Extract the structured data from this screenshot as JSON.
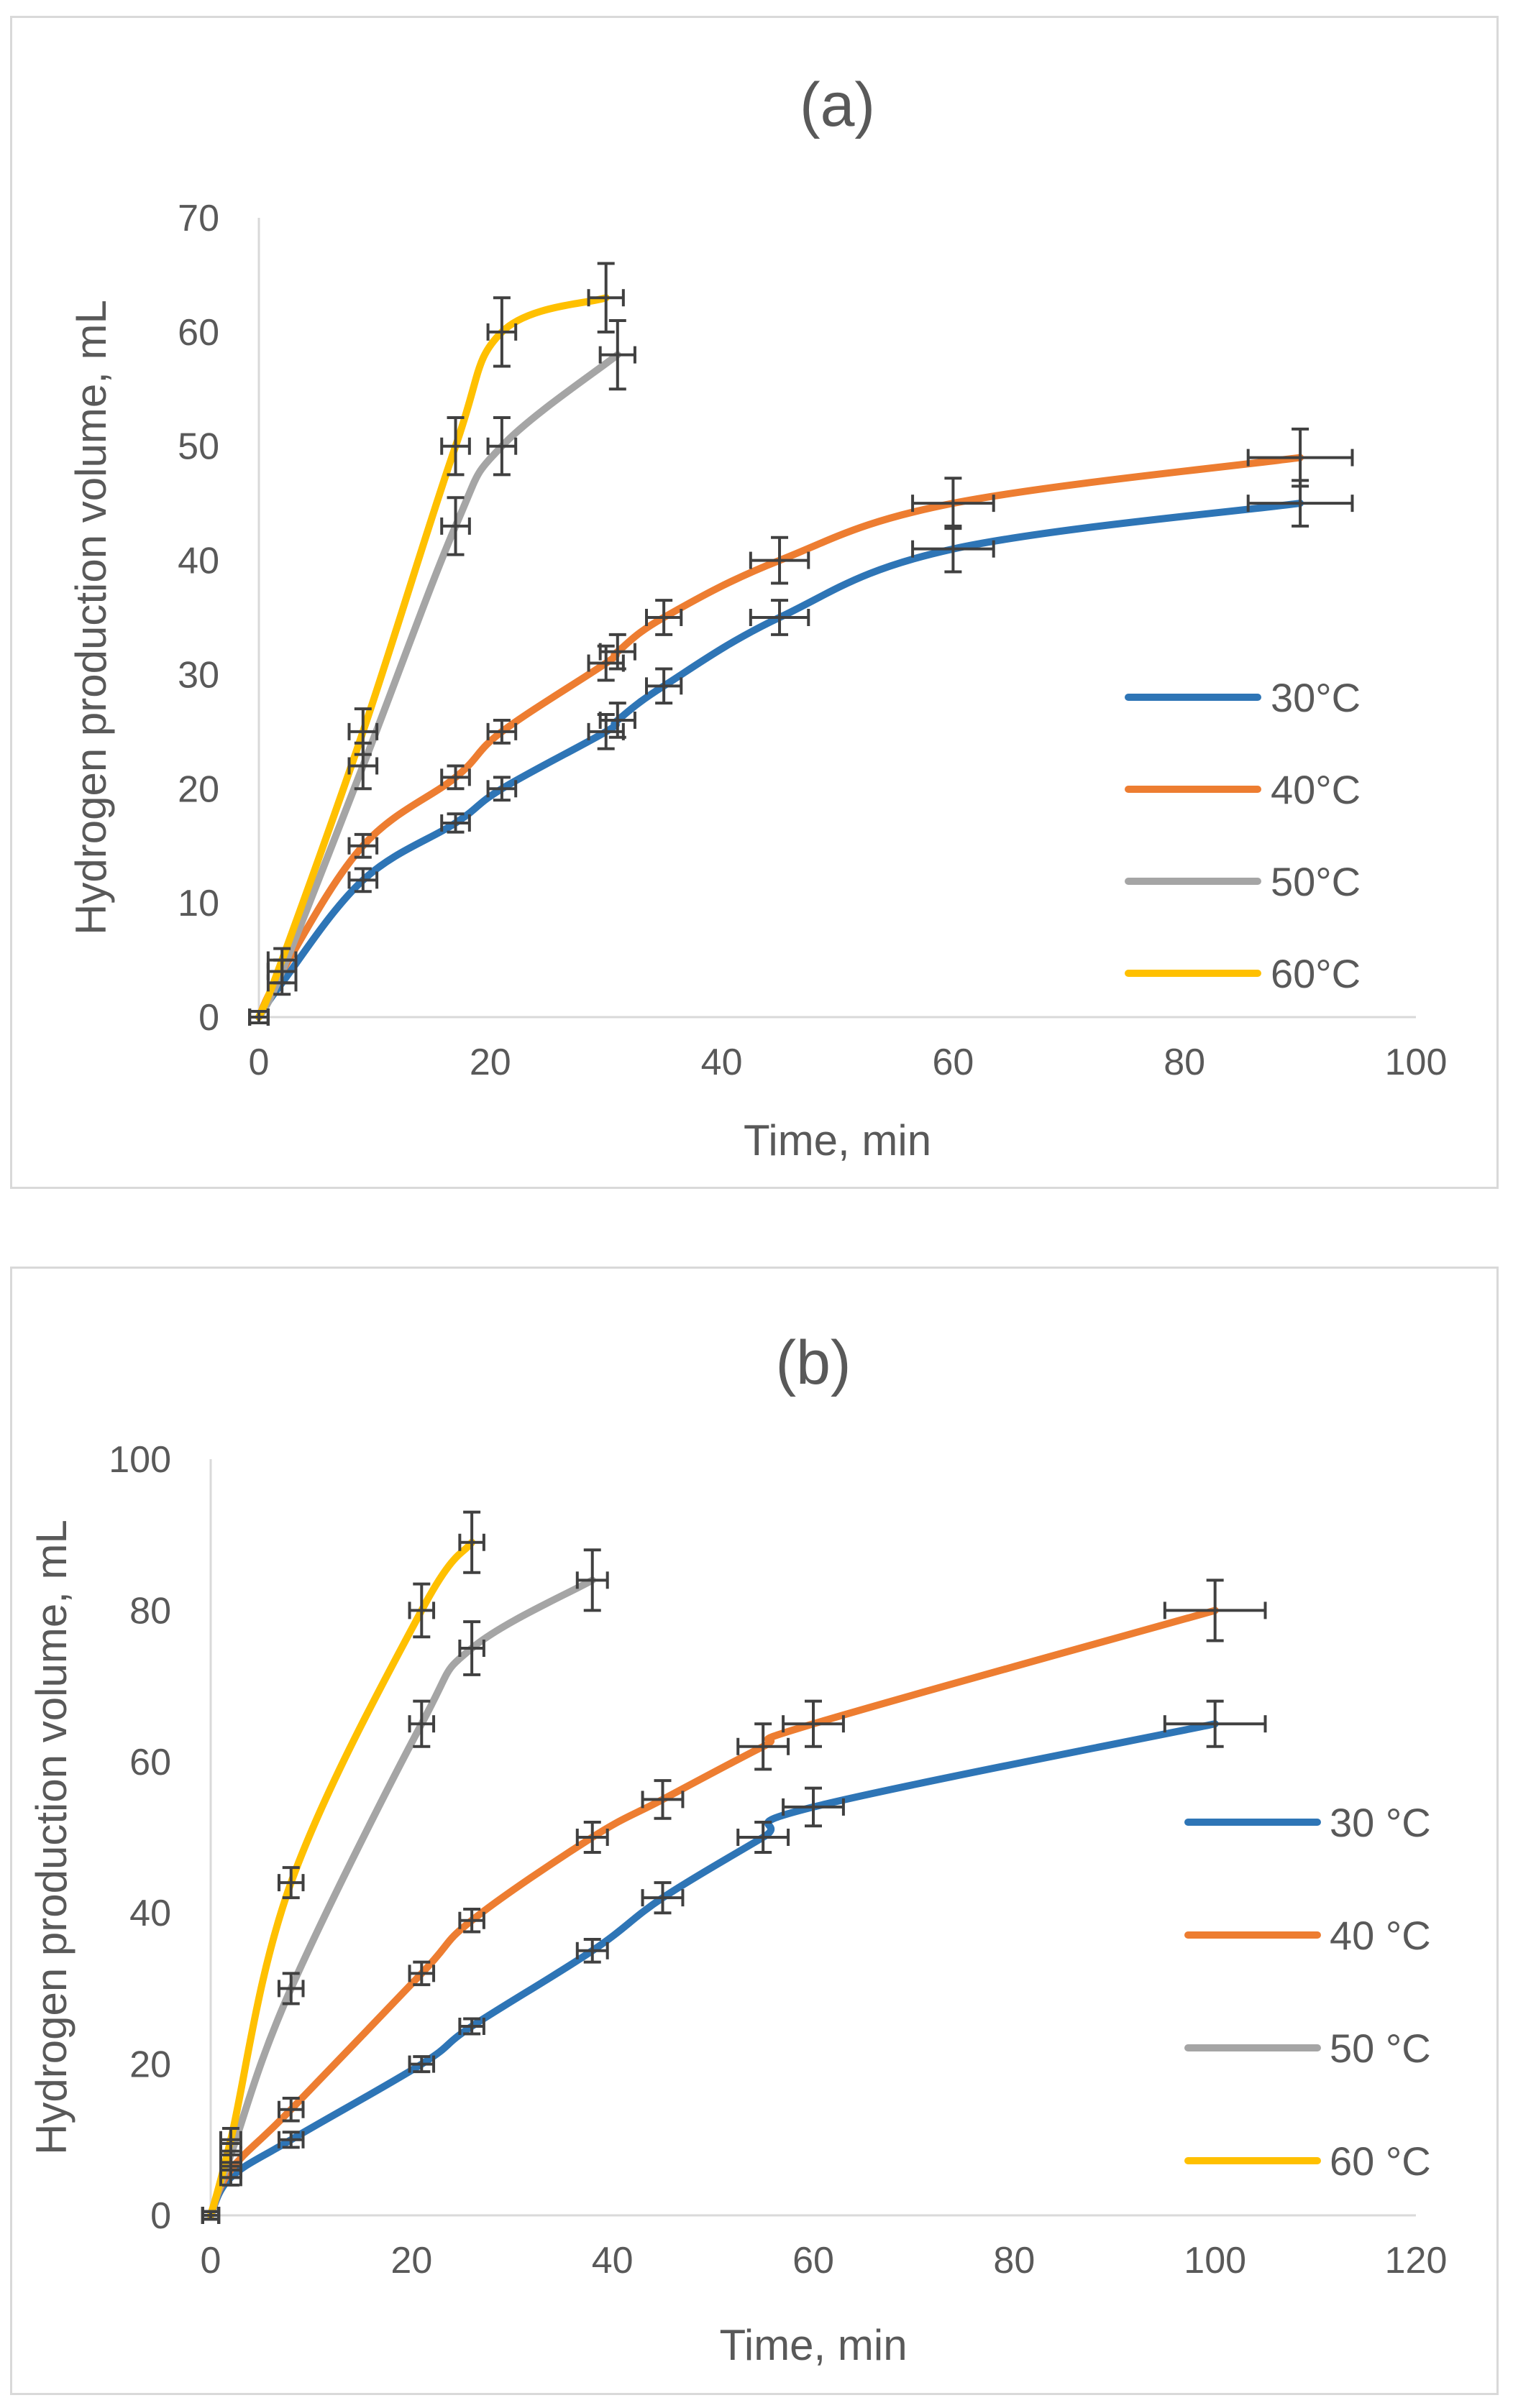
{
  "chart_data": [
    {
      "type": "line",
      "title": "(a)",
      "xlabel": "Time, min",
      "ylabel": "Hydrogen production volume, mL",
      "xlim": [
        0,
        100
      ],
      "ylim": [
        0,
        70
      ],
      "xticks": [
        0,
        20,
        40,
        60,
        80,
        100
      ],
      "yticks": [
        0,
        10,
        20,
        30,
        40,
        50,
        60,
        70
      ],
      "grid": false,
      "legend_position": "right",
      "error_bars": true,
      "series": [
        {
          "name": "30°C",
          "color": "#2e75b6",
          "x": [
            0,
            2,
            9,
            17,
            21,
            30,
            31,
            35,
            45,
            60,
            90
          ],
          "y": [
            0,
            3,
            12,
            17,
            20,
            25,
            26,
            29,
            35,
            41,
            45
          ],
          "xerr": [
            0.8,
            1.2,
            1.2,
            1.2,
            1.2,
            1.5,
            1.5,
            1.5,
            2.5,
            3.5,
            4.5
          ],
          "yerr": [
            0.5,
            1,
            1,
            0.8,
            1,
            1.5,
            1.5,
            1.5,
            1.5,
            2,
            2
          ]
        },
        {
          "name": "40°C",
          "color": "#ed7d31",
          "x": [
            0,
            2,
            9,
            17,
            21,
            30,
            31,
            35,
            45,
            60,
            90
          ],
          "y": [
            0,
            4,
            15,
            21,
            25,
            31,
            32,
            35,
            40,
            45,
            49
          ],
          "xerr": [
            0.8,
            1.2,
            1.2,
            1.2,
            1.2,
            1.5,
            1.5,
            1.5,
            2.5,
            3.5,
            4.5
          ],
          "yerr": [
            0.5,
            1,
            1,
            1,
            1,
            1.5,
            1.5,
            1.5,
            2,
            2.2,
            2.5
          ]
        },
        {
          "name": "50°C",
          "color": "#a5a5a5",
          "x": [
            0,
            2,
            9,
            17,
            21,
            31
          ],
          "y": [
            0,
            4,
            22,
            43,
            50,
            58
          ],
          "xerr": [
            0.8,
            1.2,
            1.2,
            1.2,
            1.2,
            1.5
          ],
          "yerr": [
            0.5,
            1,
            2,
            2.5,
            2.5,
            3
          ]
        },
        {
          "name": "60°C",
          "color": "#ffc000",
          "x": [
            0,
            2,
            9,
            17,
            21,
            30
          ],
          "y": [
            0,
            5,
            25,
            50,
            60,
            63
          ],
          "xerr": [
            0.8,
            1.2,
            1.2,
            1.2,
            1.2,
            1.5
          ],
          "yerr": [
            0.5,
            1,
            2,
            2.5,
            3,
            3
          ]
        }
      ]
    },
    {
      "type": "line",
      "title": "(b)",
      "xlabel": "Time, min",
      "ylabel": "Hydrogen production volume, mL",
      "xlim": [
        0,
        120
      ],
      "ylim": [
        0,
        100
      ],
      "xticks": [
        0,
        20,
        40,
        60,
        80,
        100,
        120
      ],
      "yticks": [
        0,
        20,
        40,
        60,
        80,
        100
      ],
      "grid": false,
      "legend_position": "right",
      "error_bars": true,
      "series": [
        {
          "name": "30 °C",
          "color": "#2e75b6",
          "x": [
            0,
            2,
            8,
            21,
            26,
            38,
            45,
            55,
            60,
            100
          ],
          "y": [
            0,
            5,
            10,
            20,
            25,
            35,
            42,
            50,
            54,
            65
          ],
          "xerr": [
            0.8,
            1,
            1.2,
            1.2,
            1.2,
            1.5,
            2,
            2.5,
            3,
            5
          ],
          "yerr": [
            0.5,
            1,
            1,
            1,
            1,
            1.5,
            2,
            2,
            2.5,
            3
          ]
        },
        {
          "name": "40 °C",
          "color": "#ed7d31",
          "x": [
            0,
            2,
            8,
            21,
            26,
            38,
            45,
            55,
            60,
            100
          ],
          "y": [
            0,
            6,
            14,
            32,
            39,
            50,
            55,
            62,
            65,
            80
          ],
          "xerr": [
            0.8,
            1,
            1.2,
            1.2,
            1.2,
            1.5,
            2,
            2.5,
            3,
            5
          ],
          "yerr": [
            0.5,
            1,
            1.5,
            1.5,
            1.5,
            2,
            2.5,
            3,
            3,
            4
          ]
        },
        {
          "name": "50 °C",
          "color": "#a5a5a5",
          "x": [
            0,
            2,
            8,
            21,
            26,
            38
          ],
          "y": [
            0,
            8,
            30,
            65,
            75,
            84
          ],
          "xerr": [
            0.8,
            1,
            1.2,
            1.2,
            1.2,
            1.5
          ],
          "yerr": [
            0.5,
            1.5,
            2,
            3,
            3.5,
            4
          ]
        },
        {
          "name": "60 °C",
          "color": "#ffc000",
          "x": [
            0,
            2,
            8,
            21,
            26
          ],
          "y": [
            0,
            10,
            44,
            80,
            89
          ],
          "xerr": [
            0.8,
            1,
            1.2,
            1.2,
            1.2
          ],
          "yerr": [
            0.5,
            1.5,
            2,
            3.5,
            4
          ]
        }
      ]
    }
  ]
}
